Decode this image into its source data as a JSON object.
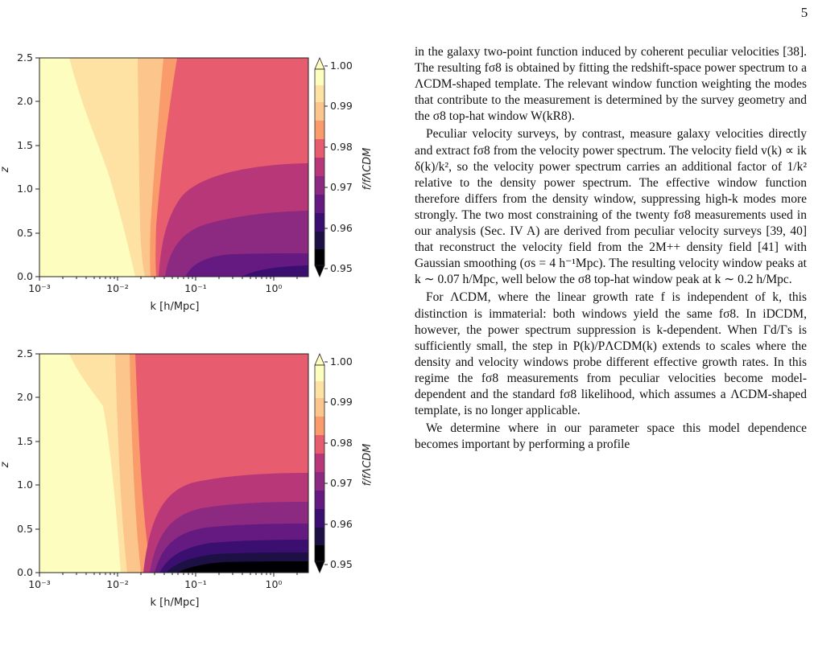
{
  "page": {
    "number": "5"
  },
  "figure": {
    "colormap": [
      "#fcfdbf",
      "#fde2a3",
      "#fcc58c",
      "#fa9b6b",
      "#e75d6f",
      "#b73779",
      "#8c2981",
      "#641a80",
      "#3b0f70",
      "#1c1044",
      "#000004"
    ],
    "panels": [
      {
        "ylabel": "z",
        "xlabel": "k [h/Mpc]",
        "xticks": [
          "10⁻³",
          "10⁻²",
          "10⁻¹",
          "10⁰"
        ],
        "yticks": [
          "0.0",
          "0.5",
          "1.0",
          "1.5",
          "2.0",
          "2.5"
        ],
        "colorbar": {
          "label": "f/fΛCDM",
          "ticks": [
            "1.00",
            "0.99",
            "0.98",
            "0.97",
            "0.96",
            "0.95"
          ]
        }
      },
      {
        "ylabel": "z",
        "xlabel": "k [h/Mpc]",
        "xticks": [
          "10⁻³",
          "10⁻²",
          "10⁻¹",
          "10⁰"
        ],
        "yticks": [
          "0.0",
          "0.5",
          "1.0",
          "1.5",
          "2.0",
          "2.5"
        ],
        "colorbar": {
          "label": "f/fΛCDM",
          "ticks": [
            "1.00",
            "0.99",
            "0.98",
            "0.97",
            "0.96",
            "0.95"
          ]
        }
      }
    ]
  },
  "text": {
    "p1": "in the galaxy two-point function induced by coherent peculiar velocities [38]. The resulting fσ8 is obtained by fitting the redshift-space power spectrum to a ΛCDM-shaped template. The relevant window function weighting the modes that contribute to the measurement is determined by the survey geometry and the σ8 top-hat window W(kR8).",
    "p2": "Peculiar velocity surveys, by contrast, measure galaxy velocities directly and extract fσ8 from the velocity power spectrum. The velocity field v(k) ∝ ik δ(k)/k², so the velocity power spectrum carries an additional factor of 1/k² relative to the density power spectrum. The effective window function therefore differs from the density window, suppressing high-k modes more strongly. The two most constraining of the twenty fσ8 measurements used in our analysis (Sec. IV A) are derived from peculiar velocity surveys [39, 40] that reconstruct the velocity field from the 2M++ density field [41] with Gaussian smoothing (σs = 4 h⁻¹Mpc). The resulting velocity window peaks at k ∼ 0.07 h/Mpc, well below the σ8 top-hat window peak at k ∼ 0.2 h/Mpc.",
    "p3": "For ΛCDM, where the linear growth rate f is independent of k, this distinction is immaterial: both windows yield the same fσ8. In iDCDM, however, the power spectrum suppression is k-dependent. When Γd/Γs is sufficiently small, the step in P(k)/PΛCDM(k) extends to scales where the density and velocity windows probe different effective growth rates. In this regime the fσ8 measurements from peculiar velocities become model-dependent and the standard fσ8 likelihood, which assumes a ΛCDM-shaped template, is no longer applicable.",
    "p4": "We determine where in our parameter space this model dependence becomes important by performing a profile"
  }
}
